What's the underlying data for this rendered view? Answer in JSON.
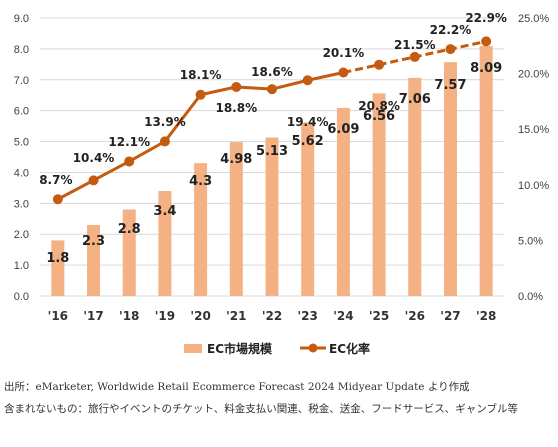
{
  "chart_data": {
    "type": "bar+line",
    "categories": [
      "'16",
      "'17",
      "'18",
      "'19",
      "'20",
      "'21",
      "'22",
      "'23",
      "'24",
      "'25",
      "'26",
      "'27",
      "'28"
    ],
    "series": [
      {
        "name": "EC市場規模",
        "type": "bar",
        "axis": "left",
        "values": [
          1.8,
          2.3,
          2.8,
          3.4,
          4.3,
          4.98,
          5.13,
          5.62,
          6.09,
          6.56,
          7.06,
          7.57,
          8.09
        ],
        "labels": [
          "1.8",
          "2.3",
          "2.8",
          "3.4",
          "4.3",
          "4.98",
          "5.13",
          "5.62",
          "6.09",
          "6.56",
          "7.06",
          "7.57",
          "8.09"
        ],
        "color": "#F4B183"
      },
      {
        "name": "EC化率",
        "type": "line",
        "axis": "right",
        "values": [
          8.7,
          10.4,
          12.1,
          13.9,
          18.1,
          18.8,
          18.6,
          19.4,
          20.1,
          20.8,
          21.5,
          22.2,
          22.9
        ],
        "labels": [
          "8.7%",
          "10.4%",
          "12.1%",
          "13.9%",
          "18.1%",
          "18.8%",
          "18.6%",
          "19.4%",
          "20.1%",
          "20.8%",
          "21.5%",
          "22.2%",
          "22.9%"
        ],
        "forecast_from_index": 8,
        "color": "#C55A11"
      }
    ],
    "y_left": {
      "lim": [
        0,
        9
      ],
      "ticks": [
        "0.0",
        "1.0",
        "2.0",
        "3.0",
        "4.0",
        "5.0",
        "6.0",
        "7.0",
        "8.0",
        "9.0"
      ]
    },
    "y_right": {
      "lim": [
        0,
        25
      ],
      "ticks": [
        "0.0%",
        "5.0%",
        "10.0%",
        "15.0%",
        "20.0%",
        "25.0%"
      ]
    },
    "grid": true,
    "legend_position": "bottom"
  },
  "notes": {
    "source": "出所：eMarketer, Worldwide Retail Ecommerce Forecast 2024 Midyear Update より作成",
    "excluded": "含まれないもの：旅行やイベントのチケット、料金支払い関連、税金、送金、フードサービス、ギャンブル等"
  }
}
